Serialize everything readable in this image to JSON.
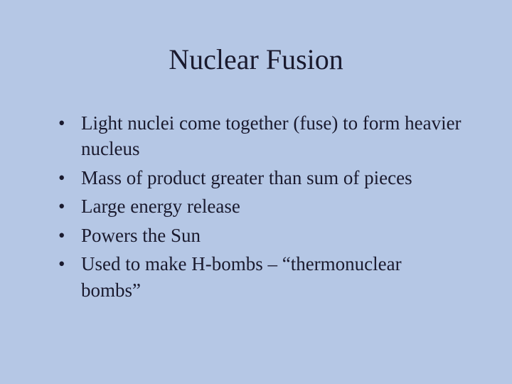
{
  "slide": {
    "background_color": "#b5c7e5",
    "text_color": "#1a1a2e",
    "font_family": "Times New Roman",
    "title": {
      "text": "Nuclear Fusion",
      "fontsize": 40,
      "align": "center"
    },
    "bullets": {
      "fontsize": 27,
      "items": [
        "Light nuclei come together (fuse) to form heavier nucleus",
        "Mass of product greater than sum of pieces",
        "Large energy release",
        "Powers the Sun",
        "Used to make H-bombs – “thermonuclear bombs”"
      ]
    }
  }
}
